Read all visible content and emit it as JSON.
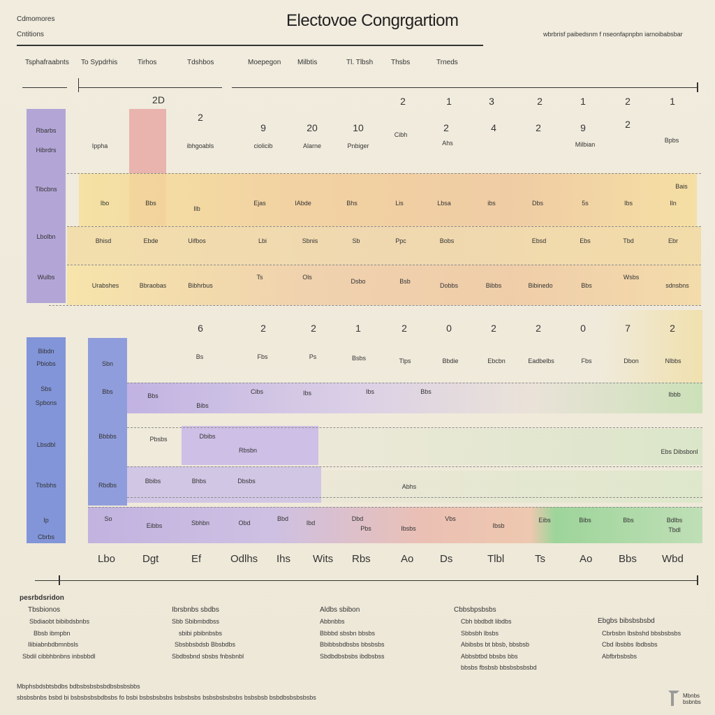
{
  "header": {
    "title": "Electovoe Congrgartiom",
    "left_line1": "Cdmomores",
    "left_line2": "Cntitions",
    "right_caption": "wbrbrisf paibedsnm f nseonfapnpbn iarnoibabsbar"
  },
  "column_headers": [
    "Tsphafraabnts",
    "To Sypdrhis",
    "Tirhos",
    "Tdshbos",
    "Moepegon",
    "Milbtis",
    "Tl. Tlbsh",
    "Thsbs",
    "Trneds"
  ],
  "top_numbers": [
    "2D",
    "2",
    "1",
    "3",
    "2",
    "1",
    "2",
    "1"
  ],
  "upper_block": {
    "row_a_numbers": [
      "2",
      "9",
      "20",
      "10",
      "2",
      "4",
      "2",
      "9",
      "2"
    ],
    "row_a_labels": [
      "Ippha",
      "ibhgoabls",
      "ciolicib",
      "Alarne",
      "Pnbiger",
      "Cibh",
      "Ahs",
      "Milbian",
      "Bpbs"
    ],
    "left_stack_labels": [
      "Rbarbs",
      "Hibrdrs",
      "Tibcbns",
      "Lbolbn",
      "Wulbs"
    ],
    "row_b_labels": [
      "Ibo",
      "Bbs",
      "Ilb",
      "Ejas",
      "IAbde",
      "Bhs",
      "Lis",
      "Lbsa",
      "ibs",
      "Dbs",
      "5s",
      "Ibs",
      "Iln",
      "Bais"
    ],
    "row_c_labels": [
      "Bhisd",
      "Ebde",
      "Uifbos",
      "Lbi",
      "Sbnis",
      "Sb",
      "Ppc",
      "Bobs",
      "Ebsd",
      "Ebs",
      "Tbd",
      "Ebr"
    ],
    "row_d_labels": [
      "Urabshes",
      "Bbraobas",
      "Bibhrbus",
      "Ts",
      "Ols",
      "Dsbo",
      "Bsb",
      "Dobbs",
      "Bibbs",
      "Bibinedo",
      "Bbs",
      "Wsbs",
      "sdnsbns"
    ]
  },
  "lower_block": {
    "row_e_numbers": [
      "6",
      "2",
      "2",
      "1",
      "2",
      "0",
      "2",
      "2",
      "0",
      "7",
      "2"
    ],
    "row_e_labels": [
      "Bs",
      "Fbs",
      "Ps",
      "Bsbs",
      "Tlps",
      "Bbdie",
      "Ebcbn",
      "Eadbelbs",
      "Fbs",
      "Dbon",
      "Nlbbs"
    ],
    "left_stack_labels": [
      "Bibdn",
      "Pbiobs",
      "Sbs",
      "Spbons",
      "Lbsdbl",
      "Tbsbhs",
      "Ip",
      "Cbrbs"
    ],
    "row_f_labels": [
      "Sbn",
      "Bbs",
      "Bbs",
      "Bibs",
      "Cibs",
      "Ibs",
      "Ibs",
      "Bbs"
    ],
    "row_f_right": "Ibbb",
    "row_g_labels": [
      "Bbbbs",
      "Pbsbs",
      "Dbibs",
      "Rbsbn"
    ],
    "row_g_right": "Ebs Dibsbonl",
    "row_h_labels": [
      "Rbdbs",
      "Bbibs",
      "Bhbs",
      "Dbsbs",
      "Abhs"
    ],
    "row_i_labels": [
      "So",
      "Eibbs",
      "Sbhbn",
      "Obd",
      "Bbd",
      "Ibd",
      "Dbd",
      "Pbs",
      "Ibsbs",
      "Vbs",
      "Ibsb",
      "Eibs",
      "Bibs",
      "Bbs",
      "Bdlbs",
      "Tbdl"
    ]
  },
  "bottom_row_labels": [
    "Lbo",
    "Dgt",
    "Ef",
    "Odlhs",
    "Ihs",
    "Wits",
    "Rbs",
    "Ao",
    "Ds",
    "Tlbl",
    "Ts",
    "Ao",
    "Bbs",
    "Wbd"
  ],
  "legend": {
    "heading": "pesrbdsridon",
    "columns": [
      {
        "title": "Tbsbionos",
        "items": [
          "Sbdiaobt bibibdsbnbs",
          "Bbsb ibmpbn",
          "Ilibiabnbdbmnbsls",
          "Sbdil cibbhbnbns inbsbbdl"
        ]
      },
      {
        "title": "Ibrsbnbs sbdbs",
        "items": [
          "Sbb Sbibmbdbss",
          "sbibi pbibnbsbs",
          "Sbsbbsbdsb Bbsbdbs",
          "Sbdbsbnd sbsbs fnbsbnbl"
        ]
      },
      {
        "title": "Aldbs sbibon",
        "items": [
          "Abbnbbs",
          "Bbbbd sbsbn bbsbs",
          "Bbibbsbdbsbs bbsbsbs",
          "Sbdbdbsbsbs ibdbsbss"
        ]
      },
      {
        "title": "Cbbsbpsbsbs",
        "items": [
          "Cbh bbdbdt libdbs",
          "Sbbsbh lbsbs",
          "Abibsbs bt bbsb, bbsbsb",
          "Abbsbtbd bbsbs bbs",
          "bbsbs fbsbsb bbsbsbsbsbd"
        ]
      },
      {
        "title": "Ebgbs bibsbsbsbd",
        "items": [
          "Cbrbsbn lbsbshd bbsbsbsbs",
          "Cbd Ibsbbs Ibdbsbs",
          "Abfbrbsbsbs"
        ]
      }
    ]
  },
  "footer": {
    "line1": "Mbphsbdsbtsbdbs bdbsbsbsbsbdbsbsbsbbs",
    "line2": "sbsbsbnbs bsbd bi bsbsbsbsbdbsbs fo bsbi bsbsbsbsbs bsbsbsbs bsbsbsbsbsbs bsbsbsb bsbdbsbsbsbsbs"
  },
  "logo_text": "Mbnbs bsbnbs",
  "colors": {
    "purple": "#a89ad6",
    "blue": "#6f86d8",
    "pink": "#e8a9a6",
    "yellow": "#f5dd8c",
    "orange": "#f1c98e",
    "lavender": "#c8b7e8",
    "green": "#b9dcae",
    "green_strong": "#8fd18f"
  }
}
